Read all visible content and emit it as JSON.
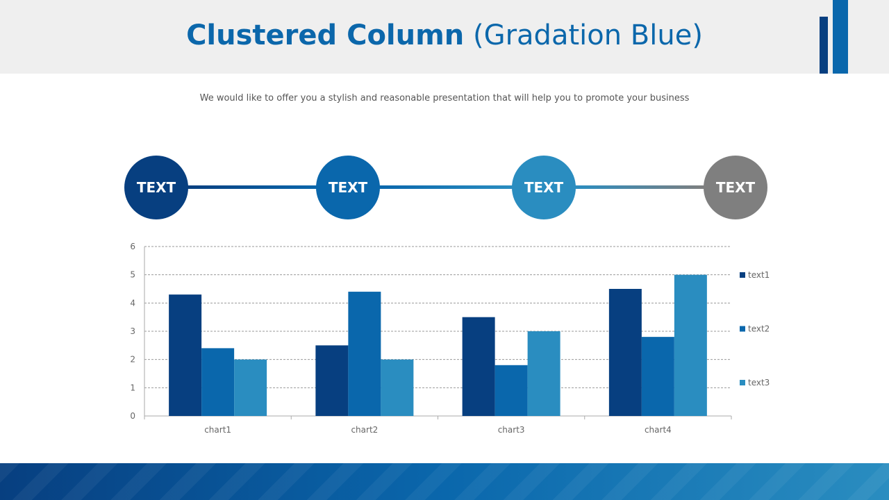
{
  "header": {
    "title_bold": "Clustered Column",
    "title_rest": "(Gradation Blue)"
  },
  "subtitle": "We would like to offer you a stylish and reasonable presentation that will help you to promote your business",
  "timeline": [
    {
      "label": "TEXT",
      "color": "#073f80"
    },
    {
      "label": "TEXT",
      "color": "#0a67ac"
    },
    {
      "label": "TEXT",
      "color": "#2a8dc0"
    },
    {
      "label": "TEXT",
      "color": "#7f7f7f"
    }
  ],
  "chart_data": {
    "type": "bar",
    "categories": [
      "chart1",
      "chart2",
      "chart3",
      "chart4"
    ],
    "series": [
      {
        "name": "text1",
        "values": [
          4.3,
          2.5,
          3.5,
          4.5
        ],
        "color": "#073f80"
      },
      {
        "name": "text2",
        "values": [
          2.4,
          4.4,
          1.8,
          2.8
        ],
        "color": "#0a67ac"
      },
      {
        "name": "text3",
        "values": [
          2.0,
          2.0,
          3.0,
          5.0
        ],
        "color": "#2a8dc0"
      }
    ],
    "ylim": [
      0,
      6
    ],
    "yticks": [
      "0",
      "1",
      "2",
      "3",
      "4",
      "5",
      "6"
    ],
    "grid": true,
    "legend": "right"
  }
}
